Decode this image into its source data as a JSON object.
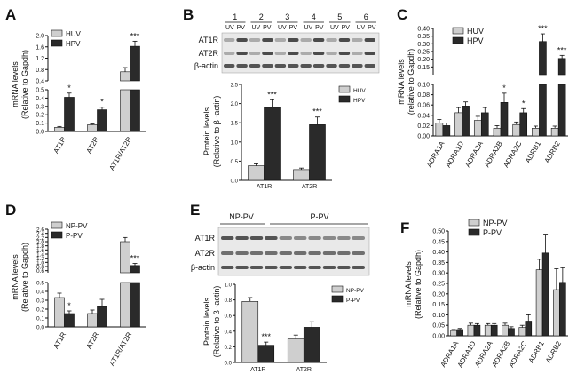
{
  "colors": {
    "light": "#cfcfcf",
    "dark": "#2a2a2a",
    "axis": "#111111",
    "blot_bg": "#e9e9e9",
    "band": "#3a3a3a"
  },
  "panels": {
    "A": {
      "label": "A",
      "type": "bar",
      "chart_type": "bar",
      "legend": [
        "HUV",
        "HPV"
      ],
      "ylabel": [
        "mRNA levels",
        "(Relative to Gapdh)"
      ],
      "categories": [
        "AT1R",
        "AT2R",
        "AT1R/AT2R"
      ],
      "series": [
        {
          "name": "HUV",
          "values": [
            0.05,
            0.08,
            0.72
          ],
          "err": [
            0.01,
            0.01,
            0.15
          ]
        },
        {
          "name": "HPV",
          "values": [
            0.41,
            0.26,
            1.62
          ],
          "err": [
            0.05,
            0.03,
            0.18
          ]
        }
      ],
      "sig": [
        "*",
        "*",
        "***"
      ],
      "yaxis_lower": {
        "range": [
          0,
          0.5
        ],
        "ticks": [
          "0.0",
          "0.1",
          "0.2",
          "0.3",
          "0.4",
          "0.5"
        ]
      },
      "yaxis_upper": {
        "range": [
          0.4,
          2.0
        ],
        "ticks": [
          "0.4",
          "0.8",
          "1.2",
          "1.6",
          "2.0"
        ]
      }
    },
    "B": {
      "label": "B",
      "type": "bar",
      "chart_type": "bar",
      "lanes": [
        "1",
        "2",
        "3",
        "4",
        "5",
        "6"
      ],
      "lane_sub": [
        "UV",
        "PV"
      ],
      "blot_labels": [
        "AT1R",
        "AT2R",
        "β-actin"
      ],
      "legend": [
        "HUV",
        "HPV"
      ],
      "ylabel": [
        "Protein levels",
        "(Relative to β -actin)"
      ],
      "categories": [
        "AT1R",
        "AT2R"
      ],
      "series": [
        {
          "name": "HUV",
          "values": [
            0.38,
            0.28
          ],
          "err": [
            0.05,
            0.04
          ]
        },
        {
          "name": "HPV",
          "values": [
            1.9,
            1.45
          ],
          "err": [
            0.2,
            0.2
          ]
        }
      ],
      "sig": [
        "***",
        "***"
      ],
      "yaxis": {
        "range": [
          0,
          2.5
        ],
        "ticks": [
          "0.0",
          "0.5",
          "1.0",
          "1.5",
          "2.0",
          "2.5"
        ]
      }
    },
    "C": {
      "label": "C",
      "type": "bar",
      "chart_type": "bar",
      "legend": [
        "HUV",
        "HPV"
      ],
      "ylabel": [
        "mRNA levels",
        "(relative to Gapdh)"
      ],
      "categories": [
        "ADRA1A",
        "ADRA1D",
        "ADRA2A",
        "ADRA2B",
        "ADRA2C",
        "ADRB1",
        "ADRB2"
      ],
      "series": [
        {
          "name": "HUV",
          "values": [
            0.025,
            0.045,
            0.03,
            0.015,
            0.022,
            0.015,
            0.015
          ],
          "err": [
            0.007,
            0.01,
            0.008,
            0.005,
            0.005,
            0.004,
            0.004
          ]
        },
        {
          "name": "HPV",
          "values": [
            0.02,
            0.058,
            0.045,
            0.065,
            0.045,
            0.315,
            0.205
          ],
          "err": [
            0.005,
            0.008,
            0.01,
            0.018,
            0.008,
            0.05,
            0.02
          ]
        }
      ],
      "sig": [
        "",
        "",
        "",
        "*",
        "*",
        "***",
        "***"
      ],
      "yaxis_lower": {
        "range": [
          0,
          0.1
        ],
        "ticks": [
          "0.00",
          "0.02",
          "0.04",
          "0.06",
          "0.08",
          "0.10"
        ]
      },
      "yaxis_upper": {
        "range": [
          0.1,
          0.4
        ],
        "ticks": [
          "0.15",
          "0.20",
          "0.25",
          "0.30",
          "0.35",
          "0.40"
        ]
      }
    },
    "D": {
      "label": "D",
      "type": "bar",
      "chart_type": "bar",
      "legend": [
        "NP-PV",
        "P-PV"
      ],
      "ylabel": [
        "mRNA levels",
        "(Relative to Gapdh)"
      ],
      "categories": [
        "AT1R",
        "AT2R",
        "AT1R/AT2R"
      ],
      "series": [
        {
          "name": "NP-PV",
          "values": [
            0.33,
            0.15,
            2.0
          ],
          "err": [
            0.05,
            0.04,
            0.2
          ]
        },
        {
          "name": "P-PV",
          "values": [
            0.15,
            0.23,
            0.85
          ],
          "err": [
            0.03,
            0.08,
            0.1
          ]
        }
      ],
      "sig": [
        "*",
        "",
        "***"
      ],
      "yaxis_lower": {
        "range": [
          0,
          0.5
        ],
        "ticks": [
          "0.0",
          "0.1",
          "0.2",
          "0.3",
          "0.4",
          "0.5"
        ]
      },
      "yaxis_upper": {
        "range": [
          0.5,
          2.6
        ],
        "ticks": [
          "0.6",
          "0.8",
          "1.0",
          "1.2",
          "1.4",
          "1.6",
          "1.8",
          "2.0",
          "2.2",
          "2.4",
          "2.6"
        ]
      }
    },
    "E": {
      "label": "E",
      "type": "bar",
      "chart_type": "bar",
      "groups": [
        "NP-PV",
        "P-PV"
      ],
      "blot_labels": [
        "AT1R",
        "AT2R",
        "β-actin"
      ],
      "legend": [
        "NP-PV",
        "P-PV"
      ],
      "ylabel": [
        "Protein levels",
        "(Relative to β -actin)"
      ],
      "categories": [
        "AT1R",
        "AT2R"
      ],
      "series": [
        {
          "name": "NP-PV",
          "values": [
            0.78,
            0.3
          ],
          "err": [
            0.05,
            0.05
          ]
        },
        {
          "name": "P-PV",
          "values": [
            0.22,
            0.45
          ],
          "err": [
            0.04,
            0.07
          ]
        }
      ],
      "sig": [
        "***",
        ""
      ],
      "yaxis": {
        "range": [
          0,
          1.0
        ],
        "ticks": [
          "0.0",
          "0.2",
          "0.4",
          "0.6",
          "0.8",
          "1.0"
        ]
      }
    },
    "F": {
      "label": "F",
      "type": "bar",
      "chart_type": "bar",
      "legend": [
        "NP-PV",
        "P-PV"
      ],
      "ylabel": [
        "mRNA levels",
        "(Relative to Gapdh)"
      ],
      "categories": [
        "ADRA1A",
        "ADRA1D",
        "ADRA2A",
        "ADRA2B",
        "ADRA2C",
        "ADRB1",
        "ADRB2"
      ],
      "series": [
        {
          "name": "NP-PV",
          "values": [
            0.025,
            0.05,
            0.05,
            0.05,
            0.04,
            0.315,
            0.22
          ],
          "err": [
            0.005,
            0.01,
            0.008,
            0.01,
            0.01,
            0.05,
            0.1
          ]
        },
        {
          "name": "P-PV",
          "values": [
            0.03,
            0.05,
            0.05,
            0.035,
            0.07,
            0.395,
            0.255
          ],
          "err": [
            0.005,
            0.008,
            0.008,
            0.008,
            0.03,
            0.09,
            0.07
          ]
        }
      ],
      "sig": [
        "",
        "",
        "",
        "",
        "",
        "",
        ""
      ],
      "yaxis": {
        "range": [
          0,
          0.5
        ],
        "ticks": [
          "0.00",
          "0.05",
          "0.10",
          "0.15",
          "0.20",
          "0.25",
          "0.30",
          "0.35",
          "0.40",
          "0.45",
          "0.50"
        ]
      }
    }
  },
  "chart_data": [
    {
      "type": "bar",
      "categories": [
        "AT1R",
        "AT2R",
        "AT1R/AT2R"
      ],
      "series": [
        {
          "name": "HUV",
          "values": [
            0.05,
            0.08,
            0.72
          ]
        },
        {
          "name": "HPV",
          "values": [
            0.41,
            0.26,
            1.62
          ]
        }
      ],
      "ylabel": "mRNA levels (Relative to Gapdh)",
      "broken_axis": true
    },
    {
      "type": "bar",
      "categories": [
        "AT1R",
        "AT2R"
      ],
      "series": [
        {
          "name": "HUV",
          "values": [
            0.38,
            0.28
          ]
        },
        {
          "name": "HPV",
          "values": [
            1.9,
            1.45
          ]
        }
      ],
      "ylabel": "Protein levels (Relative to β -actin)",
      "ylim": [
        0,
        2.5
      ]
    },
    {
      "type": "bar",
      "categories": [
        "ADRA1A",
        "ADRA1D",
        "ADRA2A",
        "ADRA2B",
        "ADRA2C",
        "ADRB1",
        "ADRB2"
      ],
      "series": [
        {
          "name": "HUV",
          "values": [
            0.025,
            0.045,
            0.03,
            0.015,
            0.022,
            0.015,
            0.015
          ]
        },
        {
          "name": "HPV",
          "values": [
            0.02,
            0.058,
            0.045,
            0.065,
            0.045,
            0.315,
            0.205
          ]
        }
      ],
      "ylabel": "mRNA levels (relative to Gapdh)",
      "broken_axis": true
    },
    {
      "type": "bar",
      "categories": [
        "AT1R",
        "AT2R",
        "AT1R/AT2R"
      ],
      "series": [
        {
          "name": "NP-PV",
          "values": [
            0.33,
            0.15,
            2.0
          ]
        },
        {
          "name": "P-PV",
          "values": [
            0.15,
            0.23,
            0.85
          ]
        }
      ],
      "ylabel": "mRNA levels (Relative to Gapdh)",
      "broken_axis": true
    },
    {
      "type": "bar",
      "categories": [
        "AT1R",
        "AT2R"
      ],
      "series": [
        {
          "name": "NP-PV",
          "values": [
            0.78,
            0.3
          ]
        },
        {
          "name": "P-PV",
          "values": [
            0.22,
            0.45
          ]
        }
      ],
      "ylabel": "Protein levels (Relative to β -actin)",
      "ylim": [
        0,
        1.0
      ]
    },
    {
      "type": "bar",
      "categories": [
        "ADRA1A",
        "ADRA1D",
        "ADRA2A",
        "ADRA2B",
        "ADRA2C",
        "ADRB1",
        "ADRB2"
      ],
      "series": [
        {
          "name": "NP-PV",
          "values": [
            0.025,
            0.05,
            0.05,
            0.05,
            0.04,
            0.315,
            0.22
          ]
        },
        {
          "name": "P-PV",
          "values": [
            0.03,
            0.05,
            0.05,
            0.035,
            0.07,
            0.395,
            0.255
          ]
        }
      ],
      "ylabel": "mRNA levels (Relative to Gapdh)",
      "ylim": [
        0,
        0.5
      ]
    }
  ]
}
